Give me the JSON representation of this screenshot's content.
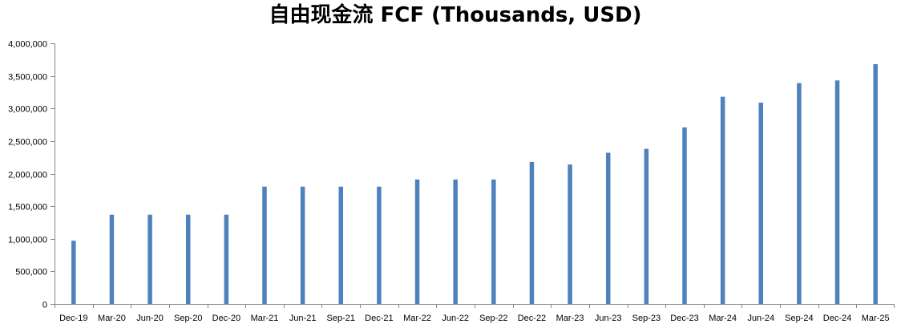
{
  "chart_data": {
    "type": "bar",
    "title": "自由现金流 FCF (Thousands, USD)",
    "xlabel": "",
    "ylabel": "",
    "ylim": [
      0,
      4000000
    ],
    "yticks": [
      0,
      500000,
      1000000,
      1500000,
      2000000,
      2500000,
      3000000,
      3500000,
      4000000
    ],
    "ytick_labels": [
      "0",
      "500,000",
      "1,000,000",
      "1,500,000",
      "2,000,000",
      "2,500,000",
      "3,000,000",
      "3,500,000",
      "4,000,000"
    ],
    "grid": false,
    "legend": "none",
    "bar_color": "#4f81bd",
    "categories": [
      "Dec-19",
      "Mar-20",
      "Jun-20",
      "Sep-20",
      "Dec-20",
      "Mar-21",
      "Jun-21",
      "Sep-21",
      "Dec-21",
      "Mar-22",
      "Jun-22",
      "Sep-22",
      "Dec-22",
      "Mar-23",
      "Jun-23",
      "Sep-23",
      "Dec-23",
      "Mar-24",
      "Jun-24",
      "Sep-24",
      "Dec-24",
      "Mar-25"
    ],
    "values": [
      970000,
      1370000,
      1370000,
      1370000,
      1370000,
      1800000,
      1800000,
      1800000,
      1800000,
      1910000,
      1910000,
      1910000,
      2180000,
      2140000,
      2320000,
      2380000,
      2710000,
      3180000,
      3090000,
      3390000,
      3430000,
      3680000
    ]
  }
}
